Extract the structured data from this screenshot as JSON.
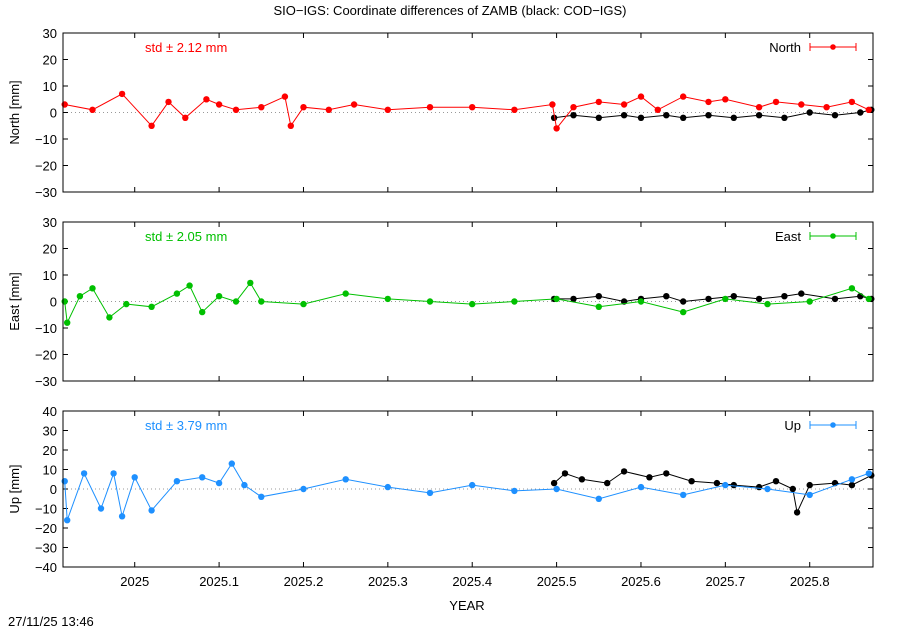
{
  "title": "SIO−IGS: Coordinate differences of ZAMB (black: COD−IGS)",
  "timestamp": "27/11/25 13:46",
  "xlabel": "YEAR",
  "chart_data": [
    {
      "type": "line",
      "panel": "North",
      "ylabel": "North [mm]",
      "legend": "North",
      "legend_position": "top-right",
      "std_label": "std ± 2.12 mm",
      "color": "#ff0000",
      "xlim": [
        2024.915,
        2025.875
      ],
      "ylim": [
        -30,
        30
      ],
      "yticks": [
        -30,
        -20,
        -10,
        0,
        10,
        20,
        30
      ],
      "xticks": [
        2025,
        2025.1,
        2025.2,
        2025.3,
        2025.4,
        2025.5,
        2025.6,
        2025.7,
        2025.8
      ],
      "series": [
        {
          "name": "SIO−IGS",
          "color": "#ff0000",
          "x": [
            2024.917,
            2024.95,
            2024.985,
            2025.02,
            2025.04,
            2025.06,
            2025.085,
            2025.1,
            2025.12,
            2025.15,
            2025.178,
            2025.185,
            2025.2,
            2025.23,
            2025.26,
            2025.3,
            2025.35,
            2025.4,
            2025.45,
            2025.495,
            2025.5,
            2025.52,
            2025.55,
            2025.58,
            2025.6,
            2025.62,
            2025.65,
            2025.68,
            2025.7,
            2025.74,
            2025.76,
            2025.79,
            2025.82,
            2025.85,
            2025.87
          ],
          "y": [
            3,
            1,
            7,
            -5,
            4,
            -2,
            5,
            3,
            1,
            2,
            6,
            -5,
            2,
            1,
            3,
            1,
            2,
            2,
            1,
            3,
            -6,
            2,
            4,
            3,
            6,
            1,
            6,
            4,
            5,
            2,
            4,
            3,
            2,
            4,
            1
          ]
        },
        {
          "name": "COD−IGS",
          "color": "#000000",
          "x": [
            2025.497,
            2025.52,
            2025.55,
            2025.58,
            2025.6,
            2025.63,
            2025.65,
            2025.68,
            2025.71,
            2025.74,
            2025.77,
            2025.8,
            2025.83,
            2025.86,
            2025.873
          ],
          "y": [
            -2,
            -1,
            -2,
            -1,
            -2,
            -1,
            -2,
            -1,
            -2,
            -1,
            -2,
            0,
            -1,
            0,
            1
          ]
        }
      ]
    },
    {
      "type": "line",
      "panel": "East",
      "ylabel": "East [mm]",
      "legend": "East",
      "legend_position": "top-right",
      "std_label": "std ± 2.05 mm",
      "color": "#00c000",
      "xlim": [
        2024.915,
        2025.875
      ],
      "ylim": [
        -30,
        30
      ],
      "yticks": [
        -30,
        -20,
        -10,
        0,
        10,
        20,
        30
      ],
      "xticks": [
        2025,
        2025.1,
        2025.2,
        2025.3,
        2025.4,
        2025.5,
        2025.6,
        2025.7,
        2025.8
      ],
      "series": [
        {
          "name": "SIO−IGS",
          "color": "#00c000",
          "x": [
            2024.917,
            2024.92,
            2024.935,
            2024.95,
            2024.97,
            2024.99,
            2025.02,
            2025.05,
            2025.065,
            2025.08,
            2025.1,
            2025.12,
            2025.137,
            2025.15,
            2025.2,
            2025.25,
            2025.3,
            2025.35,
            2025.4,
            2025.45,
            2025.5,
            2025.55,
            2025.6,
            2025.65,
            2025.7,
            2025.75,
            2025.8,
            2025.85,
            2025.87
          ],
          "y": [
            0,
            -8,
            2,
            5,
            -6,
            -1,
            -2,
            3,
            6,
            -4,
            2,
            0,
            7,
            0,
            -1,
            3,
            1,
            0,
            -1,
            0,
            1,
            -2,
            0,
            -4,
            1,
            -1,
            0,
            5,
            1
          ]
        },
        {
          "name": "COD−IGS",
          "color": "#000000",
          "x": [
            2025.497,
            2025.52,
            2025.55,
            2025.58,
            2025.6,
            2025.63,
            2025.65,
            2025.68,
            2025.71,
            2025.74,
            2025.77,
            2025.79,
            2025.83,
            2025.86,
            2025.873
          ],
          "y": [
            1,
            1,
            2,
            0,
            1,
            2,
            0,
            1,
            2,
            1,
            2,
            3,
            1,
            2,
            1
          ]
        }
      ]
    },
    {
      "type": "line",
      "panel": "Up",
      "ylabel": "Up [mm]",
      "legend": "Up",
      "legend_position": "top-right",
      "std_label": "std ± 3.79 mm",
      "color": "#1e90ff",
      "xlim": [
        2024.915,
        2025.875
      ],
      "ylim": [
        -40,
        40
      ],
      "yticks": [
        -40,
        -30,
        -20,
        -10,
        0,
        10,
        20,
        30,
        40
      ],
      "xticks": [
        2025,
        2025.1,
        2025.2,
        2025.3,
        2025.4,
        2025.5,
        2025.6,
        2025.7,
        2025.8
      ],
      "series": [
        {
          "name": "SIO−IGS",
          "color": "#1e90ff",
          "x": [
            2024.917,
            2024.92,
            2024.94,
            2024.96,
            2024.975,
            2024.985,
            2025.0,
            2025.02,
            2025.05,
            2025.08,
            2025.1,
            2025.115,
            2025.13,
            2025.15,
            2025.2,
            2025.25,
            2025.3,
            2025.35,
            2025.4,
            2025.45,
            2025.5,
            2025.55,
            2025.6,
            2025.65,
            2025.7,
            2025.75,
            2025.8,
            2025.85,
            2025.87
          ],
          "y": [
            4,
            -16,
            8,
            -10,
            8,
            -14,
            6,
            -11,
            4,
            6,
            3,
            13,
            2,
            -4,
            0,
            5,
            1,
            -2,
            2,
            -1,
            0,
            -5,
            1,
            -3,
            2,
            0,
            -3,
            5,
            8
          ]
        },
        {
          "name": "COD−IGS",
          "color": "#000000",
          "x": [
            2025.497,
            2025.51,
            2025.53,
            2025.56,
            2025.58,
            2025.61,
            2025.63,
            2025.66,
            2025.69,
            2025.71,
            2025.74,
            2025.76,
            2025.78,
            2025.785,
            2025.8,
            2025.83,
            2025.85,
            2025.873
          ],
          "y": [
            3,
            8,
            5,
            3,
            9,
            6,
            8,
            4,
            3,
            2,
            1,
            4,
            0,
            -12,
            2,
            3,
            2,
            7
          ]
        }
      ]
    }
  ]
}
